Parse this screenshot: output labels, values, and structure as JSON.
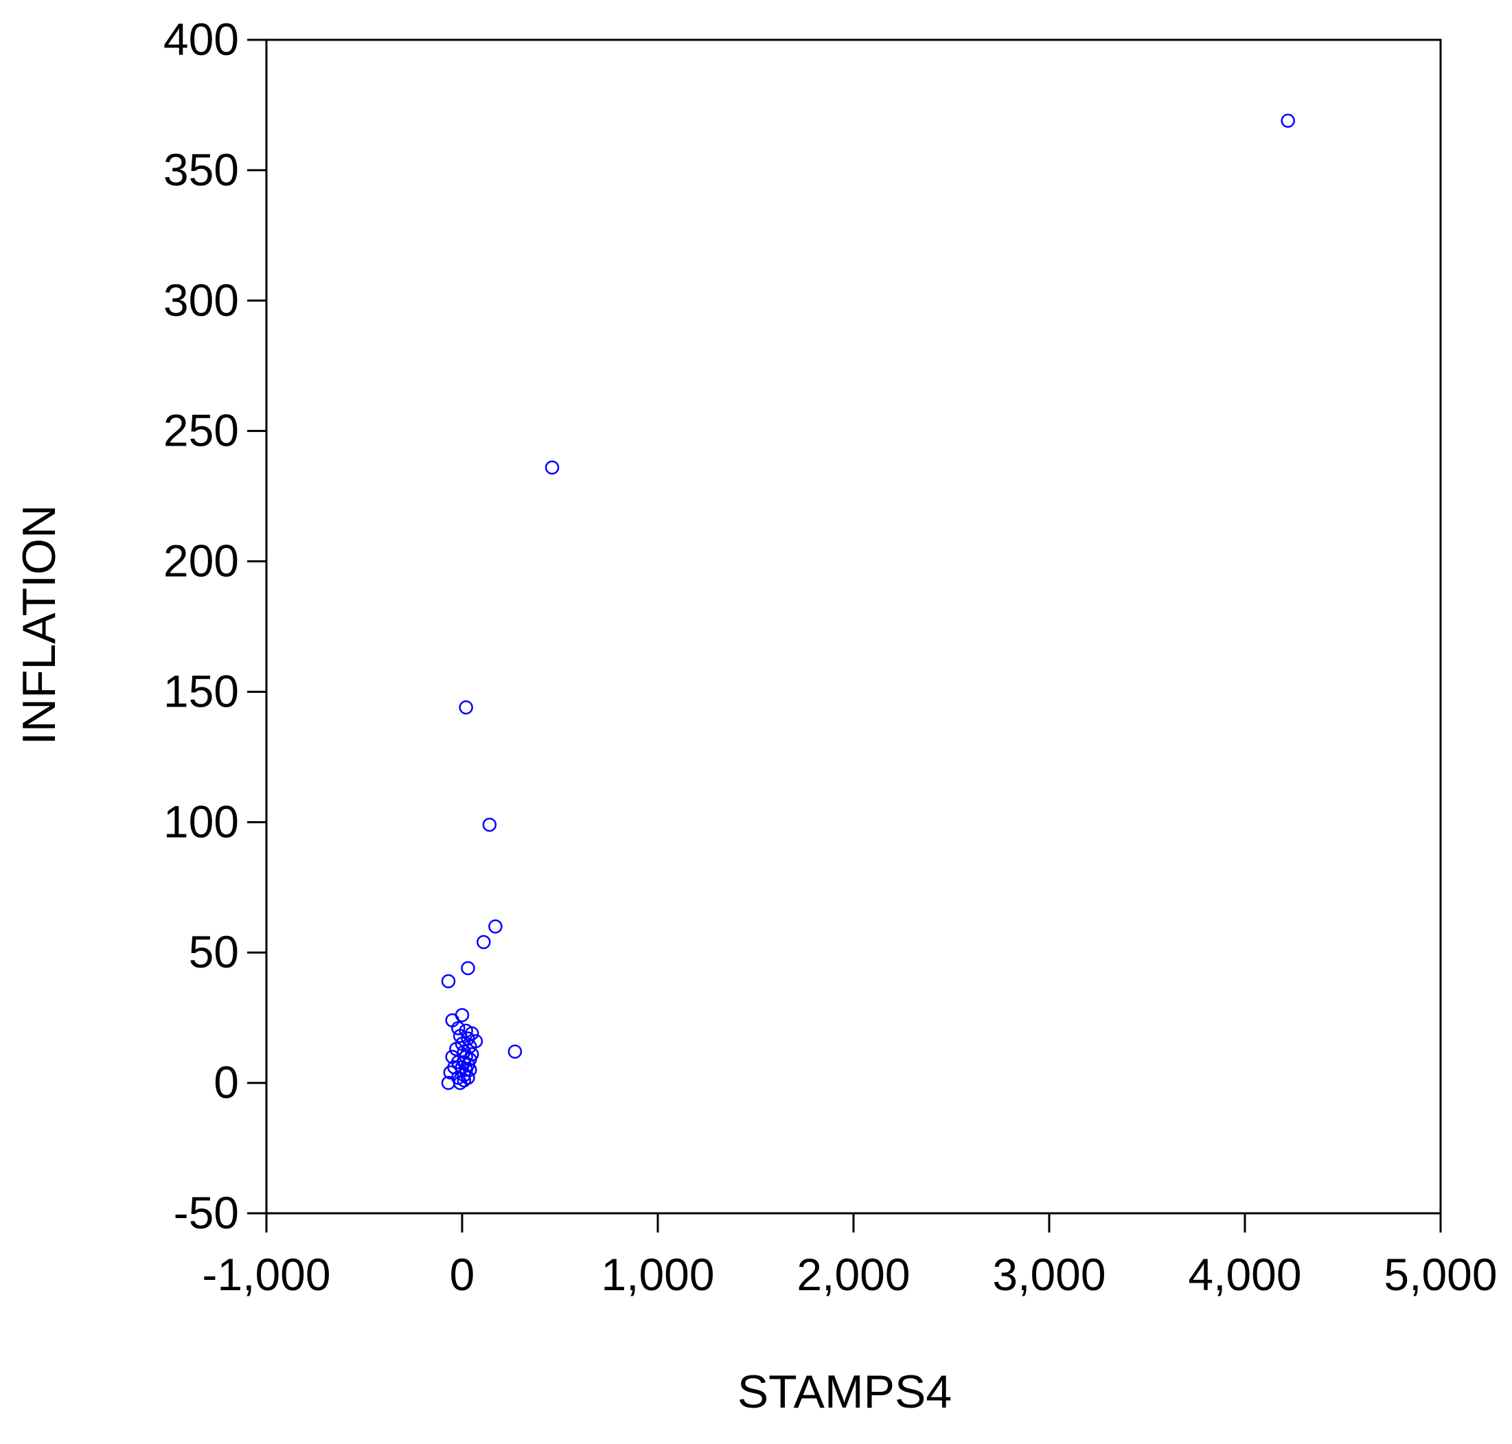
{
  "chart_data": {
    "type": "scatter",
    "title": "",
    "xlabel": "STAMPS4",
    "ylabel": "INFLATION",
    "xlim": [
      -1000,
      5000
    ],
    "ylim": [
      -50,
      400
    ],
    "xticks": [
      -1000,
      0,
      1000,
      2000,
      3000,
      4000,
      5000
    ],
    "xtick_labels": [
      "-1,000",
      "0",
      "1,000",
      "2,000",
      "3,000",
      "4,000",
      "5,000"
    ],
    "yticks": [
      -50,
      0,
      50,
      100,
      150,
      200,
      250,
      300,
      350,
      400
    ],
    "ytick_labels": [
      "-50",
      "0",
      "50",
      "100",
      "150",
      "200",
      "250",
      "300",
      "350",
      "400"
    ],
    "grid": false,
    "legend": "none",
    "marker": "open-circle",
    "marker_color": "#0000ff",
    "points": [
      {
        "x": 4220,
        "y": 369
      },
      {
        "x": 460,
        "y": 236
      },
      {
        "x": 20,
        "y": 144
      },
      {
        "x": 140,
        "y": 99
      },
      {
        "x": 170,
        "y": 60
      },
      {
        "x": 110,
        "y": 54
      },
      {
        "x": 30,
        "y": 44
      },
      {
        "x": -70,
        "y": 39
      },
      {
        "x": 270,
        "y": 12
      },
      {
        "x": -50,
        "y": 24
      },
      {
        "x": 0,
        "y": 26
      },
      {
        "x": -20,
        "y": 21
      },
      {
        "x": 20,
        "y": 20
      },
      {
        "x": 50,
        "y": 19
      },
      {
        "x": -10,
        "y": 18
      },
      {
        "x": 30,
        "y": 17
      },
      {
        "x": 70,
        "y": 16
      },
      {
        "x": 0,
        "y": 15
      },
      {
        "x": 40,
        "y": 14
      },
      {
        "x": -30,
        "y": 13
      },
      {
        "x": 10,
        "y": 12
      },
      {
        "x": 50,
        "y": 11
      },
      {
        "x": -50,
        "y": 10
      },
      {
        "x": 20,
        "y": 10
      },
      {
        "x": 40,
        "y": 9
      },
      {
        "x": -20,
        "y": 8
      },
      {
        "x": 10,
        "y": 8
      },
      {
        "x": 30,
        "y": 7
      },
      {
        "x": -40,
        "y": 6
      },
      {
        "x": 0,
        "y": 6
      },
      {
        "x": 20,
        "y": 5
      },
      {
        "x": 40,
        "y": 5
      },
      {
        "x": -60,
        "y": 4
      },
      {
        "x": 10,
        "y": 3
      },
      {
        "x": -20,
        "y": 2
      },
      {
        "x": 30,
        "y": 2
      },
      {
        "x": -70,
        "y": 0
      },
      {
        "x": -10,
        "y": 0
      },
      {
        "x": 10,
        "y": 1
      }
    ]
  }
}
